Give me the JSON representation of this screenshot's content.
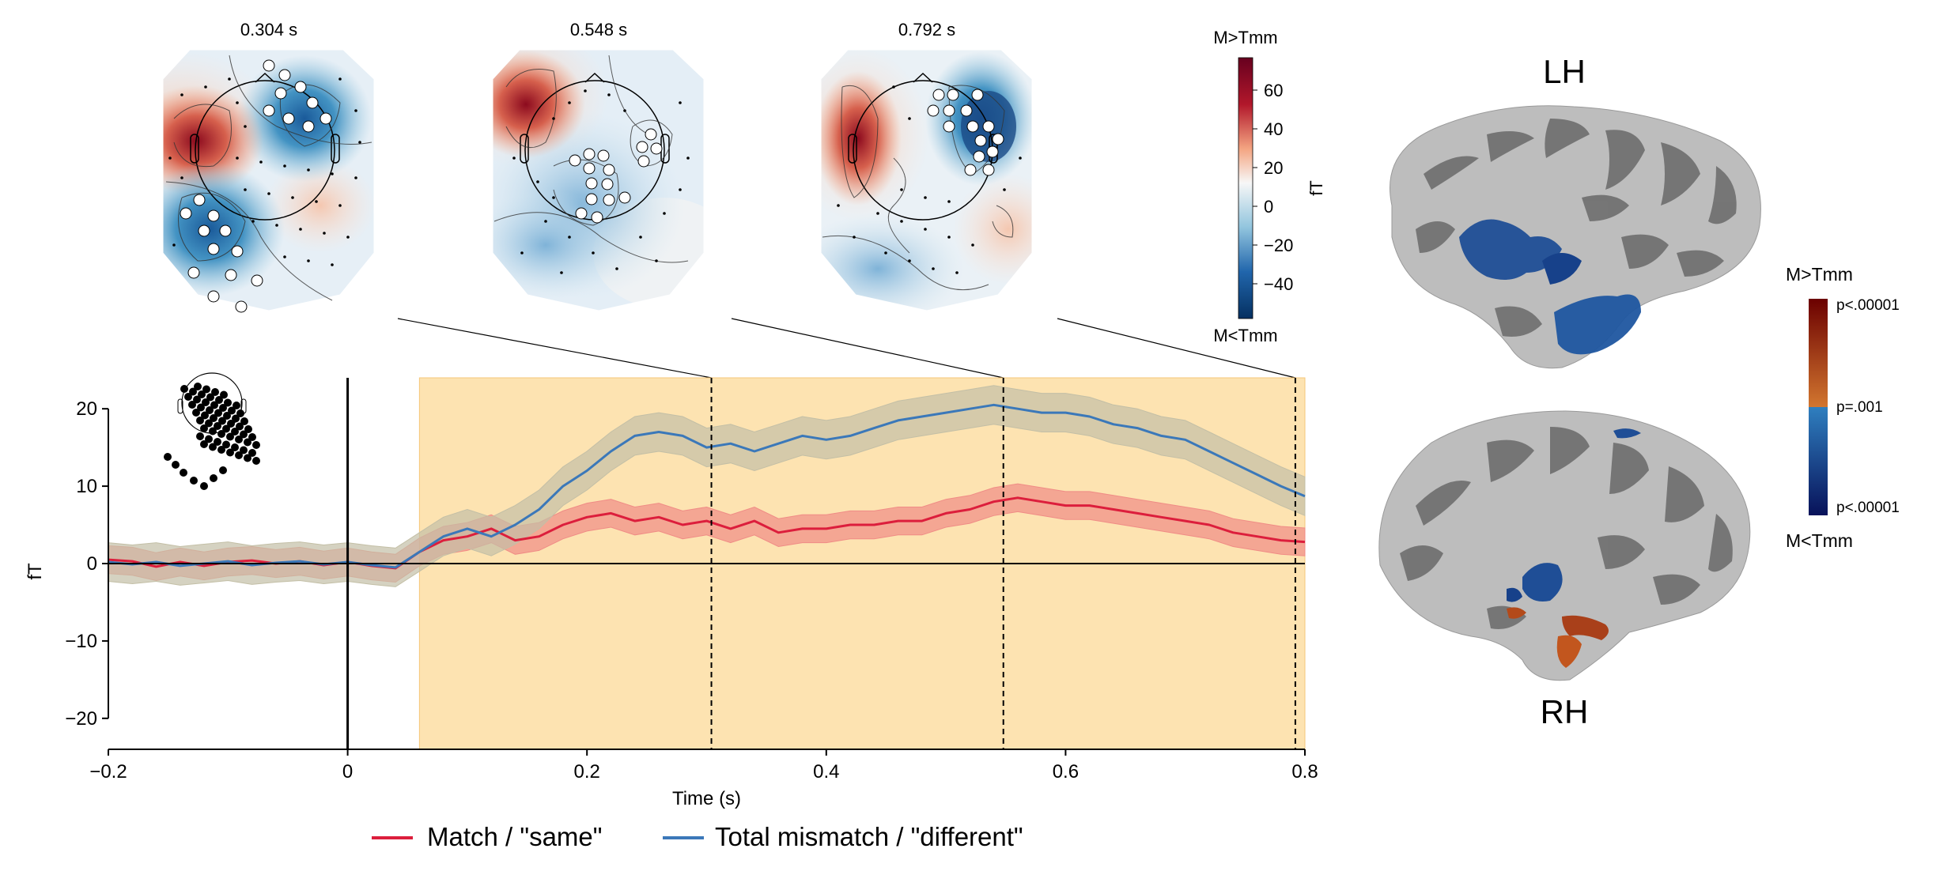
{
  "topomaps": [
    {
      "title": "0.304 s",
      "time": 0.304
    },
    {
      "title": "0.548 s",
      "time": 0.548
    },
    {
      "title": "0.792 s",
      "time": 0.792
    }
  ],
  "topo_colorbar": {
    "top_label": "M>Tmm",
    "bottom_label": "M<Tmm",
    "unit": "fT",
    "ticks": [
      "60",
      "40",
      "20",
      "0",
      "−20",
      "−40"
    ],
    "colors": {
      "max": "#67001f",
      "mid": "#f7f7f7",
      "min": "#053061"
    }
  },
  "brain": {
    "lh_label": "LH",
    "rh_label": "RH",
    "colorbar": {
      "top_label": "M>Tmm",
      "bottom_label": "M<Tmm",
      "ticks": [
        "p<.00001",
        "p=.001",
        "p<.00001"
      ],
      "colors": {
        "top": "#6b0000",
        "mid_top": "#d2762f",
        "mid_bottom": "#2f7fbf",
        "bottom": "#08125a"
      }
    }
  },
  "legend": {
    "items": [
      {
        "label": "Match / \"same\"",
        "color": "#dc1e3c"
      },
      {
        "label": "Total mismatch / \"different\"",
        "color": "#3b78b9"
      }
    ]
  },
  "chart_data": {
    "type": "line",
    "xlabel": "Time (s)",
    "ylabel": "fT",
    "xlim": [
      -0.2,
      0.8
    ],
    "ylim": [
      -24,
      24
    ],
    "xticks": [
      "−0.2",
      "0",
      "0.2",
      "0.4",
      "0.6",
      "0.8"
    ],
    "yticks": [
      "−20",
      "−10",
      "0",
      "10",
      "20"
    ],
    "highlight_window": [
      0.06,
      0.8
    ],
    "highlight_color": "#fde3b1",
    "vlines": [
      0.304,
      0.548,
      0.792
    ],
    "series": [
      {
        "name": "Match / \"same\"",
        "color": "#dc1e3c",
        "band_color": "#f08c86",
        "ci": 1.8,
        "x": [
          -0.2,
          -0.18,
          -0.16,
          -0.14,
          -0.12,
          -0.1,
          -0.08,
          -0.06,
          -0.04,
          -0.02,
          0,
          0.02,
          0.04,
          0.06,
          0.08,
          0.1,
          0.12,
          0.14,
          0.16,
          0.18,
          0.2,
          0.22,
          0.24,
          0.26,
          0.28,
          0.3,
          0.32,
          0.34,
          0.36,
          0.38,
          0.4,
          0.42,
          0.44,
          0.46,
          0.48,
          0.5,
          0.52,
          0.54,
          0.56,
          0.58,
          0.6,
          0.62,
          0.64,
          0.66,
          0.68,
          0.7,
          0.72,
          0.74,
          0.76,
          0.78,
          0.8
        ],
        "y": [
          0.5,
          0.3,
          -0.4,
          0.2,
          -0.3,
          0.2,
          0.4,
          0,
          0.3,
          -0.2,
          0.2,
          -0.3,
          -0.6,
          1.5,
          3,
          3.5,
          4.5,
          3,
          3.5,
          5,
          6,
          6.5,
          5.5,
          6,
          5,
          5.5,
          4.5,
          5.5,
          4,
          4.5,
          4.5,
          5,
          5,
          5.5,
          5.5,
          6.5,
          7,
          8,
          8.5,
          8,
          7.5,
          7.5,
          7,
          6.5,
          6,
          5.5,
          5,
          4,
          3.5,
          3,
          2.8
        ]
      },
      {
        "name": "Total mismatch / \"different\"",
        "color": "#3b78b9",
        "band_color": "#c3bfa6",
        "ci": 2.5,
        "x": [
          -0.2,
          -0.18,
          -0.16,
          -0.14,
          -0.12,
          -0.1,
          -0.08,
          -0.06,
          -0.04,
          -0.02,
          0,
          0.02,
          0.04,
          0.06,
          0.08,
          0.1,
          0.12,
          0.14,
          0.16,
          0.18,
          0.2,
          0.22,
          0.24,
          0.26,
          0.28,
          0.3,
          0.32,
          0.34,
          0.36,
          0.38,
          0.4,
          0.42,
          0.44,
          0.46,
          0.48,
          0.5,
          0.52,
          0.54,
          0.56,
          0.58,
          0.6,
          0.62,
          0.64,
          0.66,
          0.68,
          0.7,
          0.72,
          0.74,
          0.76,
          0.78,
          0.8
        ],
        "y": [
          0.2,
          -0.1,
          0.2,
          -0.3,
          0,
          0.3,
          -0.2,
          0.1,
          0.3,
          -0.1,
          0.2,
          -0.2,
          -0.5,
          1.5,
          3.5,
          4.5,
          3.5,
          5,
          7,
          10,
          12,
          14.5,
          16.5,
          17,
          16.5,
          15,
          15.5,
          14.5,
          15.5,
          16.5,
          16,
          16.5,
          17.5,
          18.5,
          19,
          19.5,
          20,
          20.5,
          20,
          19.5,
          19.5,
          19,
          18,
          17.5,
          16.5,
          16,
          14.5,
          13,
          11.5,
          10,
          8.7
        ]
      }
    ]
  }
}
